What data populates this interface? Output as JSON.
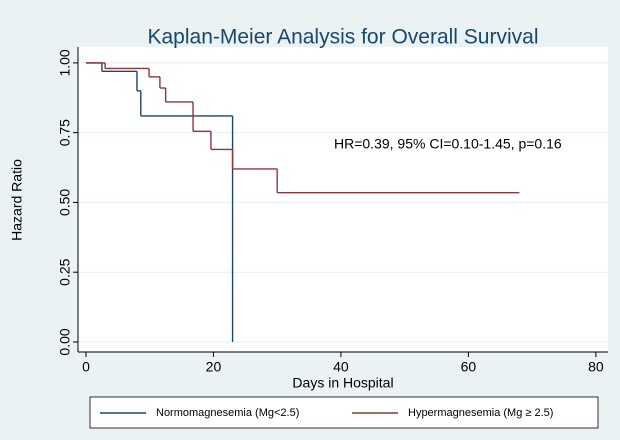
{
  "chart_data": {
    "type": "step",
    "title": "Kaplan-Meier Analysis for Overall Survival",
    "x_label": "Days in Hospital",
    "y_label": "Hazard Ratio",
    "annotation": "HR=0.39, 95% CI=0.10-1.45, p=0.16",
    "series": [
      {
        "name": "Normomagnesemia (Mg<2.5)",
        "color": "#1a476f",
        "x": [
          0,
          2.5,
          8,
          8.6,
          23
        ],
        "values": [
          1,
          0.97,
          0.9,
          0.81,
          0
        ]
      },
      {
        "name": "Hypermagnesemia (Mg ≥ 2.5)",
        "color": "#90353b",
        "x": [
          0,
          3,
          9.9,
          11.6,
          12.5,
          16.8,
          19.6,
          23,
          30,
          68
        ],
        "values": [
          1,
          0.98,
          0.95,
          0.91,
          0.86,
          0.755,
          0.69,
          0.62,
          0.535,
          0.535
        ]
      }
    ],
    "xlim": [
      -1.25,
      81.9
    ],
    "ylim": [
      -0.036,
      1.057
    ],
    "xticks": [
      0,
      20,
      40,
      60,
      80
    ],
    "yticks": [
      {
        "value": 0,
        "label": "0.00"
      },
      {
        "value": 0.25,
        "label": "0.25"
      },
      {
        "value": 0.5,
        "label": "0.50"
      },
      {
        "value": 0.75,
        "label": "0.75"
      },
      {
        "value": 1,
        "label": "1.00"
      }
    ],
    "grid": true
  }
}
